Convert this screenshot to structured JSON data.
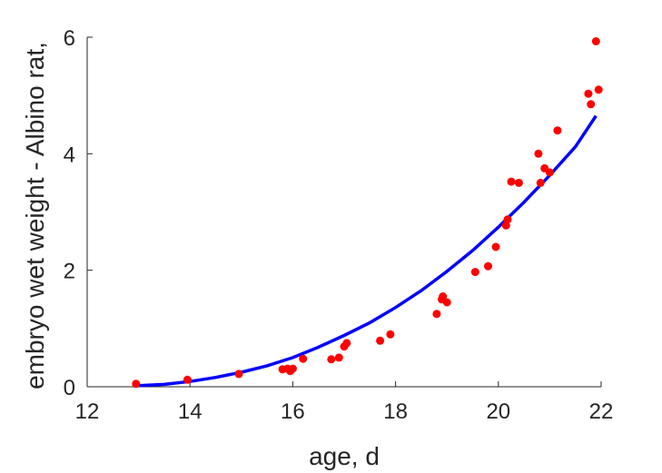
{
  "chart_data": {
    "type": "scatter",
    "xlabel": "age, d",
    "ylabel": "embryo wet weight - Albino rat,",
    "xlim": [
      12,
      22
    ],
    "ylim": [
      0,
      6
    ],
    "xticks": [
      "12",
      "14",
      "16",
      "18",
      "20",
      "22"
    ],
    "yticks": [
      "0",
      "2",
      "4",
      "6"
    ],
    "grid": false,
    "legend": "none",
    "colors": {
      "points": "#ff0000",
      "fit": "#0000ff",
      "axes": "#262626"
    },
    "series": [
      {
        "kind": "scatter",
        "x": [
          12.95,
          13.95,
          14.95,
          15.8,
          15.9,
          15.95,
          16.0,
          16.2,
          16.75,
          16.9,
          17.0,
          17.05,
          17.7,
          17.9,
          18.8,
          18.9,
          18.92,
          19.0,
          19.55,
          19.8,
          19.95,
          20.15,
          20.18,
          20.25,
          20.4,
          20.78,
          20.82,
          20.9,
          21.0,
          21.15,
          21.75,
          21.8,
          21.9,
          21.95
        ],
        "y": [
          0.05,
          0.12,
          0.22,
          0.3,
          0.31,
          0.27,
          0.31,
          0.48,
          0.47,
          0.5,
          0.69,
          0.75,
          0.79,
          0.9,
          1.25,
          1.5,
          1.55,
          1.45,
          1.97,
          2.07,
          2.4,
          2.77,
          2.87,
          3.52,
          3.5,
          4.0,
          3.5,
          3.75,
          3.68,
          4.4,
          5.03,
          4.85,
          5.93,
          5.1
        ]
      },
      {
        "kind": "line",
        "x": [
          13.0,
          13.5,
          14.0,
          14.5,
          15.0,
          15.5,
          16.0,
          16.5,
          17.0,
          17.5,
          18.0,
          18.5,
          19.0,
          19.5,
          20.0,
          20.5,
          21.0,
          21.5,
          21.9
        ],
        "y": [
          0.02,
          0.04,
          0.09,
          0.16,
          0.25,
          0.36,
          0.5,
          0.68,
          0.88,
          1.1,
          1.36,
          1.65,
          1.98,
          2.34,
          2.74,
          3.17,
          3.63,
          4.12,
          4.65
        ]
      }
    ]
  }
}
